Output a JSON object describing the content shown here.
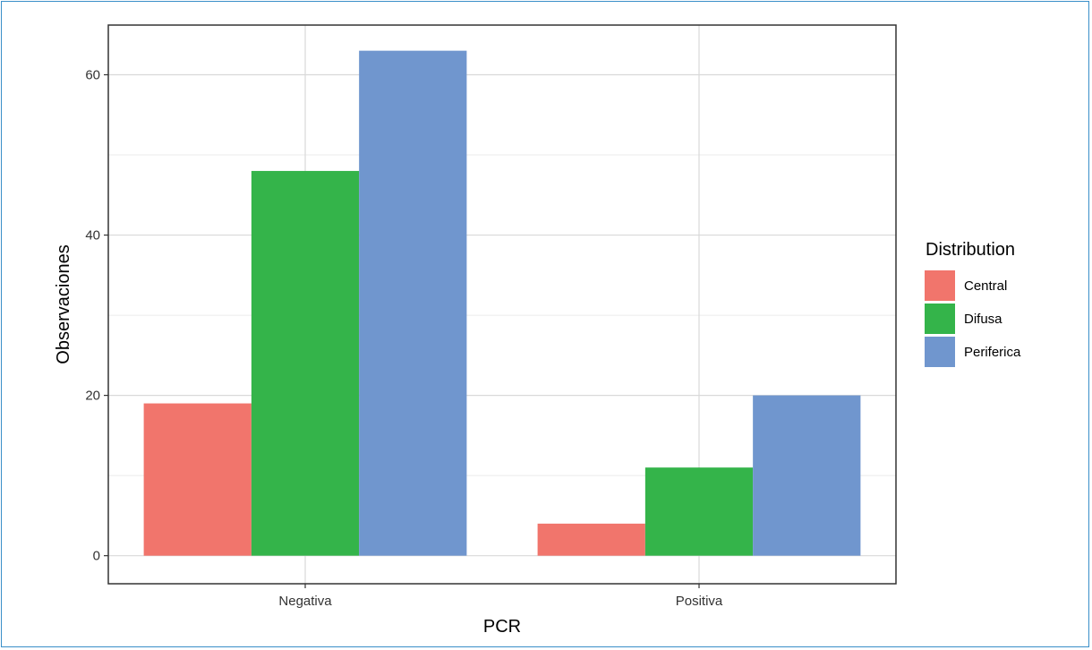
{
  "chart_data": {
    "type": "bar",
    "title": "",
    "xlabel": "PCR",
    "ylabel": "Observaciones",
    "categories": [
      "Negativa",
      "Positiva"
    ],
    "series": [
      {
        "name": "Central",
        "values": [
          19,
          4
        ],
        "color": "#F1756C"
      },
      {
        "name": "Difusa",
        "values": [
          48,
          11
        ],
        "color": "#34B44A"
      },
      {
        "name": "Periferica",
        "values": [
          63,
          20
        ],
        "color": "#7096CE"
      }
    ],
    "ylim": [
      -3.5,
      66.2
    ],
    "yticks": [
      0,
      20,
      40,
      60
    ],
    "grid": true,
    "legend": {
      "title": "Distribution",
      "position": "right"
    }
  }
}
